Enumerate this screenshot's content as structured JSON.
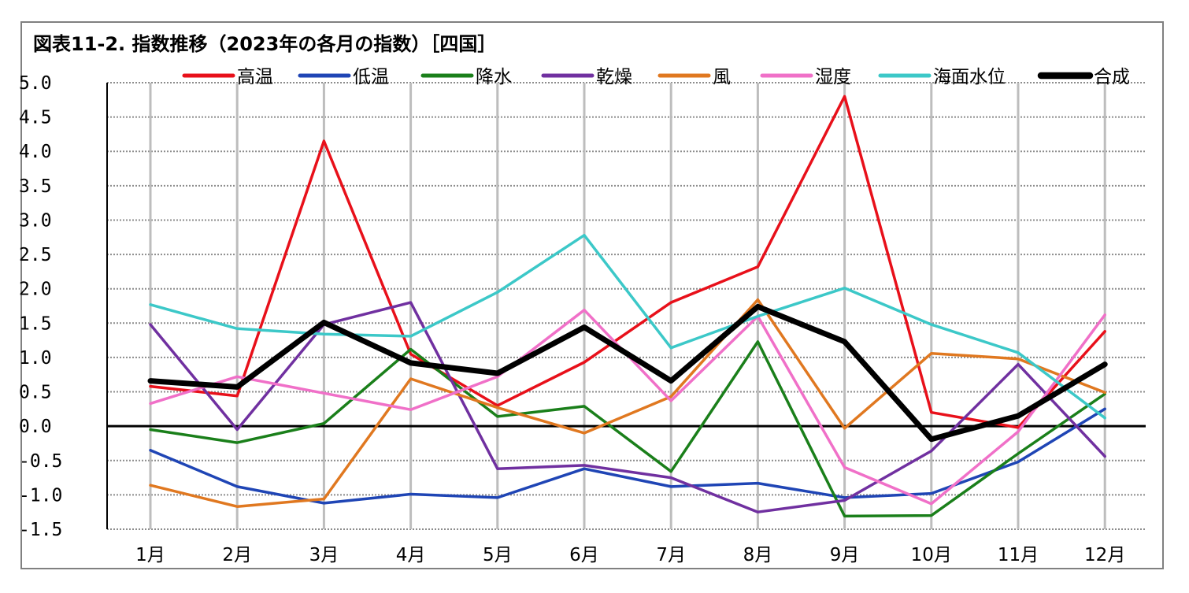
{
  "chart_data": {
    "type": "line",
    "title": "図表11-2. 指数推移（2023年の各月の指数）［四国］",
    "xlabel": "",
    "ylabel": "",
    "ylim": [
      -1.5,
      5.0
    ],
    "ytick_step": 0.5,
    "ytick_labels": [
      "5.0",
      "4.5",
      "4.0",
      "3.5",
      "3.0",
      "2.5",
      "2.0",
      "1.5",
      "1.0",
      "0.5",
      "0.0",
      "-0.5",
      "-1.0",
      "-1.5"
    ],
    "categories": [
      "1月",
      "2月",
      "3月",
      "4月",
      "5月",
      "6月",
      "7月",
      "8月",
      "9月",
      "10月",
      "11月",
      "12月"
    ],
    "grid": true,
    "legend_position": "top",
    "series": [
      {
        "name": "高温",
        "color": "#e8101a",
        "width": 3.5,
        "values": [
          0.58,
          0.44,
          4.15,
          1.05,
          0.3,
          0.93,
          1.8,
          2.32,
          4.8,
          0.2,
          -0.02,
          1.38
        ]
      },
      {
        "name": "低温",
        "color": "#1f45b5",
        "width": 3.5,
        "values": [
          -0.35,
          -0.88,
          -1.12,
          -0.99,
          -1.04,
          -0.62,
          -0.88,
          -0.83,
          -1.04,
          -0.98,
          -0.52,
          0.25
        ]
      },
      {
        "name": "降水",
        "color": "#1a7f1a",
        "width": 3.5,
        "values": [
          -0.05,
          -0.24,
          0.04,
          1.12,
          0.14,
          0.29,
          -0.66,
          1.23,
          -1.31,
          -1.3,
          -0.4,
          0.47
        ]
      },
      {
        "name": "乾燥",
        "color": "#7030a0",
        "width": 3.5,
        "values": [
          1.48,
          -0.05,
          1.48,
          1.8,
          -0.62,
          -0.57,
          -0.75,
          -1.25,
          -1.08,
          -0.36,
          0.9,
          -0.44
        ]
      },
      {
        "name": "風",
        "color": "#e07820",
        "width": 3.5,
        "values": [
          -0.86,
          -1.17,
          -1.06,
          0.69,
          0.27,
          -0.1,
          0.43,
          1.84,
          -0.03,
          1.06,
          0.98,
          0.49
        ]
      },
      {
        "name": "湿度",
        "color": "#f070c8",
        "width": 3.5,
        "values": [
          0.33,
          0.72,
          0.48,
          0.24,
          0.72,
          1.69,
          0.37,
          1.6,
          -0.6,
          -1.13,
          -0.08,
          1.62
        ]
      },
      {
        "name": "海面水位",
        "color": "#3cc8c8",
        "width": 3.5,
        "values": [
          1.77,
          1.42,
          1.34,
          1.31,
          1.95,
          2.78,
          1.14,
          1.6,
          2.01,
          1.48,
          1.07,
          0.12
        ]
      },
      {
        "name": "合成",
        "color": "#000000",
        "width": 7,
        "values": [
          0.66,
          0.57,
          1.51,
          0.92,
          0.77,
          1.44,
          0.66,
          1.74,
          1.23,
          -0.19,
          0.15,
          0.9
        ]
      }
    ]
  }
}
